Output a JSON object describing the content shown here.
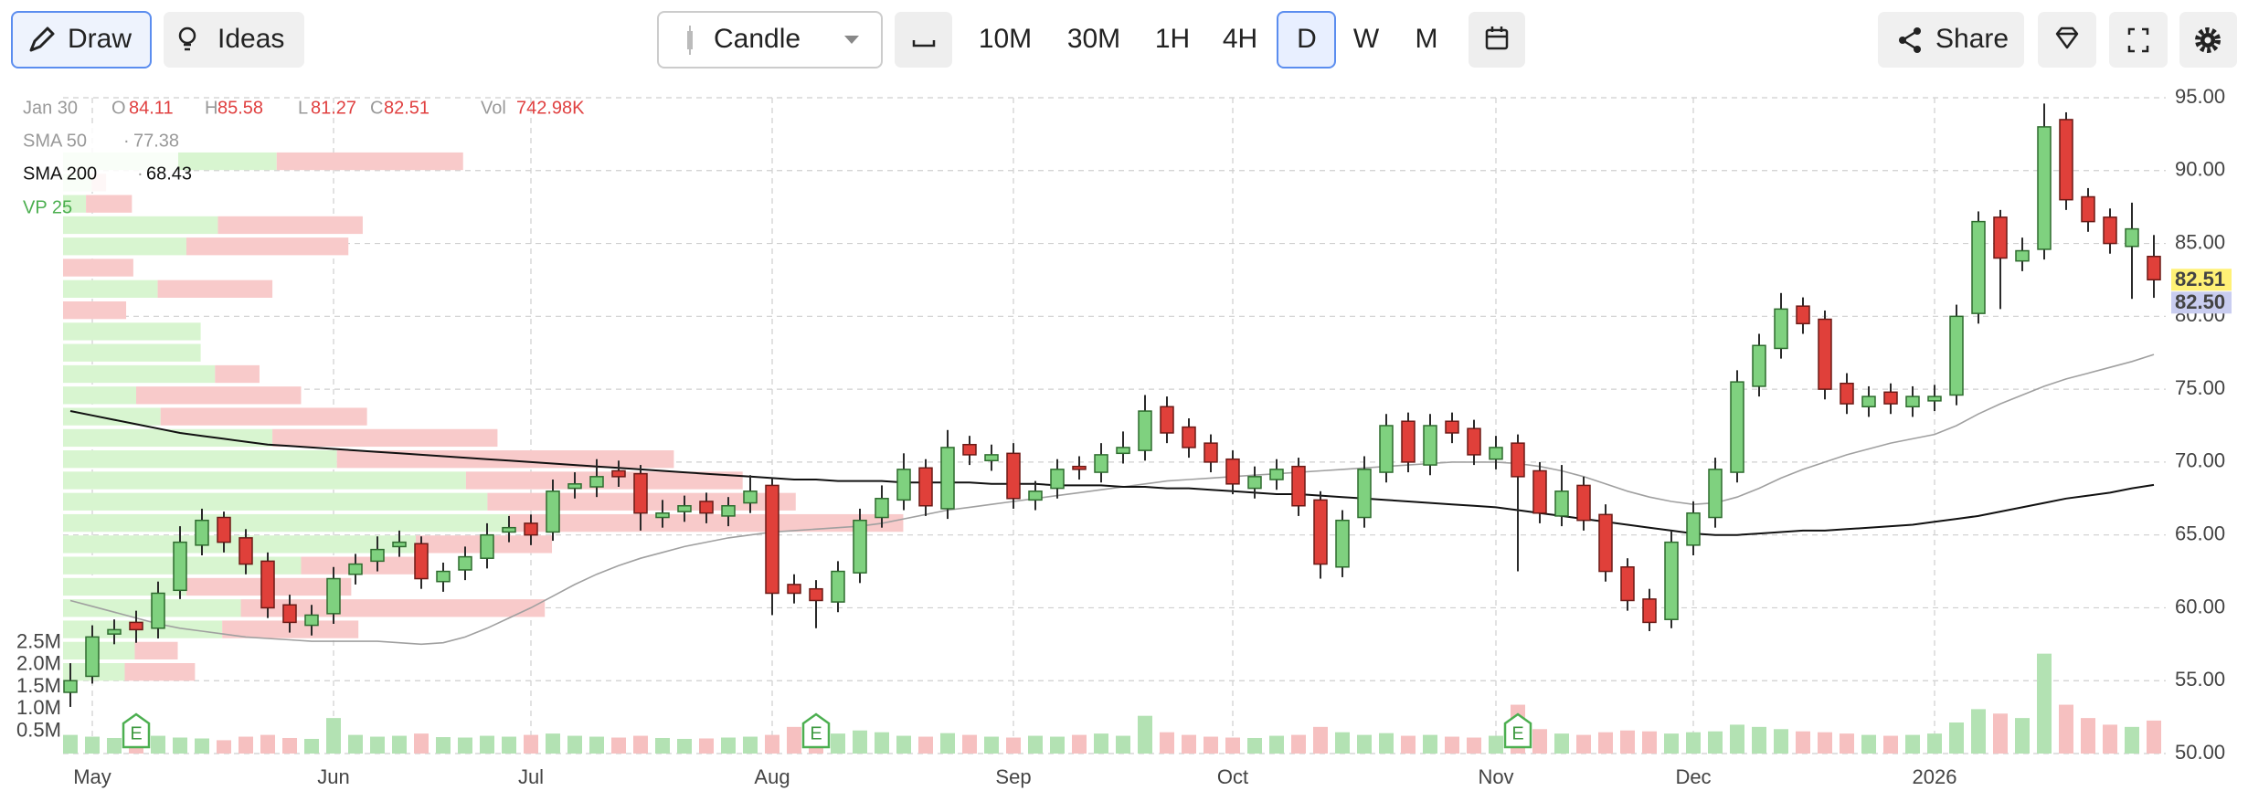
{
  "toolbar": {
    "draw": "Draw",
    "ideas": "Ideas",
    "chart_type": "Candle",
    "intervals": [
      {
        "label": "10M",
        "active": false
      },
      {
        "label": "30M",
        "active": false
      },
      {
        "label": "1H",
        "active": false
      },
      {
        "label": "4H",
        "active": false
      },
      {
        "label": "D",
        "active": true
      },
      {
        "label": "W",
        "active": false
      },
      {
        "label": "M",
        "active": false
      }
    ],
    "share": "Share"
  },
  "chart_data": {
    "type": "candlestick",
    "categories": [
      null,
      "May",
      null,
      null,
      null,
      null,
      null,
      null,
      null,
      null,
      null,
      null,
      "Jun",
      null,
      null,
      null,
      null,
      null,
      null,
      null,
      null,
      "Jul",
      null,
      null,
      null,
      null,
      null,
      null,
      null,
      null,
      null,
      null,
      "Aug",
      null,
      null,
      null,
      null,
      null,
      null,
      null,
      null,
      null,
      null,
      "Sep",
      null,
      null,
      null,
      null,
      null,
      null,
      null,
      null,
      null,
      "Oct",
      null,
      null,
      null,
      null,
      null,
      null,
      null,
      null,
      null,
      null,
      null,
      "Nov",
      null,
      null,
      null,
      null,
      null,
      null,
      null,
      null,
      "Dec",
      null,
      null,
      null,
      null,
      null,
      null,
      null,
      null,
      null,
      null,
      "2026",
      null,
      null,
      null,
      null,
      null,
      null,
      null,
      null,
      null,
      null
    ],
    "open": [
      54.2,
      55.3,
      58.2,
      59,
      58.6,
      61.2,
      64.3,
      66.2,
      64.8,
      63.2,
      60.2,
      58.8,
      59.6,
      62.3,
      63.2,
      64.2,
      64.4,
      61.8,
      62.6,
      63.4,
      65.2,
      65.8,
      65.2,
      68.2,
      68.3,
      69.4,
      69.2,
      66.2,
      66.6,
      67.3,
      66.3,
      67.2,
      68.4,
      61.6,
      61.3,
      60.4,
      62.4,
      66.2,
      67.4,
      69.6,
      66.8,
      71.2,
      70.1,
      70.6,
      67.4,
      68.2,
      69.7,
      69.3,
      70.6,
      70.8,
      73.8,
      72.4,
      71.3,
      70.2,
      68.2,
      68.8,
      69.7,
      67.4,
      62.8,
      66.2,
      69.3,
      72.8,
      69.8,
      72.8,
      72.3,
      70.2,
      71.3,
      69.4,
      66.3,
      68.4,
      66.4,
      62.8,
      60.6,
      59.2,
      64.3,
      66.2,
      69.3,
      75.2,
      77.8,
      80.7,
      79.8,
      75.4,
      73.8,
      74.8,
      73.8,
      74.2,
      74.6,
      80.2,
      86.8,
      83.8,
      84.6,
      93.5,
      88.2,
      86.8,
      84.8,
      84.11
    ],
    "high": [
      56.2,
      58.8,
      59.2,
      59.8,
      61.8,
      65.6,
      66.8,
      66.6,
      65.4,
      63.8,
      60.9,
      60.2,
      62.8,
      63.7,
      64.9,
      65.3,
      64.9,
      63.1,
      64.2,
      65.8,
      66.3,
      66.4,
      68.8,
      69.3,
      70.2,
      70.1,
      69.8,
      67.4,
      67.7,
      67.9,
      67.6,
      69.1,
      68.9,
      62.3,
      61.9,
      63.2,
      66.8,
      68.4,
      70.6,
      70.2,
      72.2,
      71.8,
      71.2,
      71.3,
      68.7,
      70.2,
      70.4,
      71.3,
      72.1,
      74.6,
      74.5,
      73.0,
      71.9,
      70.8,
      69.7,
      70.2,
      70.3,
      68.0,
      66.7,
      70.4,
      73.3,
      73.4,
      73.3,
      73.4,
      72.9,
      71.8,
      71.9,
      70.0,
      69.8,
      69.0,
      67.1,
      63.4,
      61.3,
      65.3,
      67.3,
      70.3,
      76.3,
      78.8,
      81.6,
      81.3,
      80.4,
      76.1,
      75.2,
      75.4,
      75.2,
      75.3,
      80.8,
      87.2,
      87.3,
      85.4,
      94.6,
      94.0,
      88.8,
      87.4,
      87.8,
      85.58
    ],
    "low": [
      53.2,
      54.8,
      57.5,
      57.6,
      57.9,
      60.6,
      63.6,
      63.8,
      62.3,
      59.3,
      58.3,
      58.1,
      58.9,
      61.6,
      62.5,
      63.5,
      61.3,
      61.1,
      61.9,
      62.7,
      64.5,
      64.3,
      64.6,
      67.5,
      67.6,
      68.3,
      65.3,
      65.5,
      65.9,
      65.8,
      65.6,
      66.5,
      59.5,
      60.3,
      58.6,
      59.7,
      61.7,
      65.5,
      66.7,
      66.3,
      66.1,
      69.8,
      69.4,
      66.8,
      66.7,
      67.5,
      68.8,
      68.6,
      69.9,
      70.1,
      71.3,
      70.3,
      69.3,
      67.8,
      67.5,
      68.1,
      66.3,
      62.0,
      62.1,
      65.5,
      68.6,
      69.3,
      69.1,
      71.3,
      69.8,
      69.5,
      62.5,
      65.8,
      65.6,
      65.3,
      61.8,
      59.8,
      58.4,
      58.6,
      63.6,
      65.5,
      68.6,
      74.5,
      77.1,
      78.8,
      74.3,
      73.3,
      73.1,
      73.3,
      73.1,
      73.5,
      73.9,
      79.5,
      80.5,
      83.1,
      83.9,
      87.3,
      85.8,
      84.3,
      81.2,
      81.27
    ],
    "close": [
      55,
      58,
      58.5,
      58.5,
      61,
      64.5,
      66,
      64.5,
      63,
      60,
      59,
      59.5,
      62,
      63,
      64,
      64.5,
      62,
      62.5,
      63.5,
      65,
      65.5,
      65,
      68,
      68.5,
      69,
      69,
      66.5,
      66.5,
      67,
      66.5,
      67,
      68,
      61,
      61,
      60.5,
      62.5,
      66,
      67.5,
      69.5,
      67,
      71,
      70.5,
      70.5,
      67.5,
      68,
      69.5,
      69.5,
      70.5,
      71,
      73.5,
      72,
      71,
      70,
      68.5,
      69,
      69.5,
      67,
      63,
      66,
      69.5,
      72.5,
      70,
      72.5,
      72,
      70.5,
      71,
      69,
      66.5,
      68,
      66,
      62.5,
      60.5,
      59,
      64.5,
      66.5,
      69.5,
      75.5,
      78,
      80.5,
      79.5,
      75,
      74,
      74.5,
      74,
      74.5,
      74.5,
      80,
      86.5,
      84,
      84.5,
      93,
      88,
      86.5,
      85,
      86,
      82.51
    ],
    "up_color": "#7fd17f",
    "up_edge": "#2e6b2e",
    "down_color": "#e0403a",
    "down_edge": "#6b1a16",
    "wick_color": "#2a2a2a",
    "ylim": [
      50,
      95
    ],
    "yticks": [
      {
        "value": 50,
        "label": "50.00"
      },
      {
        "value": 55,
        "label": "55.00"
      },
      {
        "value": 60,
        "label": "60.00"
      },
      {
        "value": 65,
        "label": "65.00"
      },
      {
        "value": 70,
        "label": "70.00"
      },
      {
        "value": 75,
        "label": "75.00"
      },
      {
        "value": 80,
        "label": "80.00"
      },
      {
        "value": 85,
        "label": "85.00"
      },
      {
        "value": 90,
        "label": "90.00"
      },
      {
        "value": 95,
        "label": "95.00"
      }
    ],
    "grid": true,
    "volume": {
      "values": [
        420000,
        380000,
        350000,
        650000,
        400000,
        360000,
        340000,
        300000,
        380000,
        420000,
        350000,
        330000,
        800000,
        420000,
        380000,
        400000,
        450000,
        370000,
        360000,
        400000,
        380000,
        420000,
        450000,
        400000,
        380000,
        360000,
        400000,
        350000,
        330000,
        340000,
        360000,
        380000,
        420000,
        600000,
        500000,
        450000,
        520000,
        480000,
        400000,
        380000,
        460000,
        420000,
        380000,
        360000,
        400000,
        380000,
        420000,
        450000,
        400000,
        850000,
        480000,
        420000,
        380000,
        360000,
        350000,
        400000,
        420000,
        600000,
        480000,
        420000,
        460000,
        400000,
        420000,
        380000,
        360000,
        400000,
        1100000,
        550000,
        450000,
        420000,
        480000,
        520000,
        500000,
        450000,
        480000,
        500000,
        650000,
        600000,
        550000,
        500000,
        480000,
        450000,
        420000,
        400000,
        420000,
        450000,
        700000,
        1000000,
        900000,
        800000,
        2250000,
        1100000,
        800000,
        650000,
        600000,
        742980
      ],
      "up_color": "#b3e2b3",
      "down_color": "#f6c0c0",
      "ylim": [
        0,
        2500000
      ],
      "yticks": [
        {
          "value": 500000,
          "label": "0.5M"
        },
        {
          "value": 1000000,
          "label": "1.0M"
        },
        {
          "value": 1500000,
          "label": "1.5M"
        },
        {
          "value": 2000000,
          "label": "2.0M"
        },
        {
          "value": 2500000,
          "label": "2.5M"
        }
      ]
    },
    "sma": [
      {
        "name": "SMA 50",
        "color": "#a0a0a0",
        "values": [
          60.5,
          60.1,
          59.7,
          59.3,
          58.9,
          58.6,
          58.4,
          58.2,
          58.0,
          57.9,
          57.8,
          57.7,
          57.7,
          57.7,
          57.7,
          57.6,
          57.5,
          57.6,
          58.0,
          58.6,
          59.3,
          60.0,
          60.8,
          61.6,
          62.3,
          62.9,
          63.4,
          63.8,
          64.2,
          64.5,
          64.8,
          65.0,
          65.2,
          65.3,
          65.4,
          65.5,
          65.6,
          65.8,
          66.1,
          66.4,
          66.7,
          66.9,
          67.1,
          67.3,
          67.5,
          67.7,
          67.9,
          68.1,
          68.3,
          68.5,
          68.7,
          68.8,
          68.9,
          69.0,
          69.1,
          69.2,
          69.3,
          69.4,
          69.5,
          69.6,
          69.7,
          69.8,
          69.9,
          70.0,
          70.0,
          70.0,
          69.9,
          69.7,
          69.4,
          69.0,
          68.5,
          68.0,
          67.6,
          67.3,
          67.1,
          67.2,
          67.6,
          68.2,
          68.9,
          69.5,
          70.0,
          70.5,
          70.9,
          71.3,
          71.6,
          71.9,
          72.5,
          73.3,
          74.0,
          74.6,
          75.2,
          75.7,
          76.1,
          76.5,
          76.9,
          77.38
        ]
      },
      {
        "name": "SMA 200",
        "color": "#111111",
        "values": [
          73.5,
          73.2,
          72.9,
          72.6,
          72.3,
          72.0,
          71.8,
          71.6,
          71.4,
          71.2,
          71.1,
          71.0,
          70.9,
          70.8,
          70.7,
          70.6,
          70.5,
          70.4,
          70.3,
          70.2,
          70.1,
          70.0,
          69.9,
          69.8,
          69.7,
          69.6,
          69.5,
          69.4,
          69.3,
          69.2,
          69.1,
          69.0,
          68.9,
          68.8,
          68.8,
          68.7,
          68.7,
          68.7,
          68.6,
          68.6,
          68.6,
          68.6,
          68.5,
          68.5,
          68.5,
          68.4,
          68.4,
          68.4,
          68.3,
          68.3,
          68.2,
          68.2,
          68.1,
          68.0,
          67.9,
          67.8,
          67.8,
          67.7,
          67.6,
          67.5,
          67.4,
          67.3,
          67.2,
          67.1,
          67.0,
          66.9,
          66.7,
          66.5,
          66.3,
          66.1,
          65.9,
          65.7,
          65.5,
          65.3,
          65.1,
          65.0,
          65.0,
          65.1,
          65.2,
          65.3,
          65.3,
          65.4,
          65.5,
          65.6,
          65.7,
          65.9,
          66.1,
          66.3,
          66.6,
          66.9,
          67.2,
          67.5,
          67.7,
          67.9,
          68.2,
          68.43
        ]
      }
    ],
    "volume_profile": {
      "name": "VP 25",
      "color": "#4caf50",
      "bins": [
        54.87,
        56.33,
        57.79,
        59.25,
        60.71,
        62.17,
        63.63,
        65.09,
        66.55,
        68.01,
        69.47,
        70.93,
        72.39,
        73.85,
        75.31,
        76.77,
        78.23,
        79.69,
        81.15,
        82.61,
        84.07,
        85.53,
        86.99,
        88.45,
        89.91,
        91.37
      ],
      "up": [
        4.3,
        5,
        11.1,
        12.4,
        8.6,
        16.6,
        24.6,
        31.1,
        29.6,
        28.1,
        19.1,
        14.6,
        6.8,
        5.1,
        10.6,
        9.6,
        9.6,
        0,
        6.6,
        0,
        8.6,
        10.8,
        1.6,
        2,
        14.9
      ],
      "down": [
        4.9,
        3,
        9.5,
        21.2,
        11.5,
        8,
        9.5,
        27.5,
        21.5,
        19.3,
        23.5,
        15.7,
        14.4,
        11.5,
        3.1,
        0,
        0,
        4.4,
        8,
        4.9,
        11.3,
        10.1,
        3.2,
        1,
        13
      ],
      "up_color": "#d8f5d0",
      "down_color": "#f8caca"
    },
    "earnings": [
      null,
      null,
      null,
      "E",
      null,
      null,
      null,
      null,
      null,
      null,
      null,
      null,
      null,
      null,
      null,
      null,
      null,
      null,
      null,
      null,
      null,
      null,
      null,
      null,
      null,
      null,
      null,
      null,
      null,
      null,
      null,
      null,
      null,
      null,
      "E",
      null,
      null,
      null,
      null,
      null,
      null,
      null,
      null,
      null,
      null,
      null,
      null,
      null,
      null,
      null,
      null,
      null,
      null,
      null,
      null,
      null,
      null,
      null,
      null,
      null,
      null,
      null,
      null,
      null,
      null,
      null,
      "E",
      null,
      null,
      null,
      null,
      null,
      null,
      null,
      null,
      null,
      null,
      null,
      null,
      null,
      null,
      null,
      null,
      null,
      null,
      null,
      null,
      null,
      null,
      null,
      null,
      null,
      null,
      null,
      null,
      null
    ],
    "price_tags": [
      {
        "value": 82.51,
        "color": "#fff176"
      },
      {
        "value": 82.5,
        "label": "82.50",
        "color": "#c9cdf0"
      }
    ],
    "hover": {
      "date": "Jan 30",
      "labels": [
        "O",
        "H",
        "L",
        "C",
        "Vol"
      ],
      "volume": "742.98K"
    },
    "separator": "·"
  }
}
